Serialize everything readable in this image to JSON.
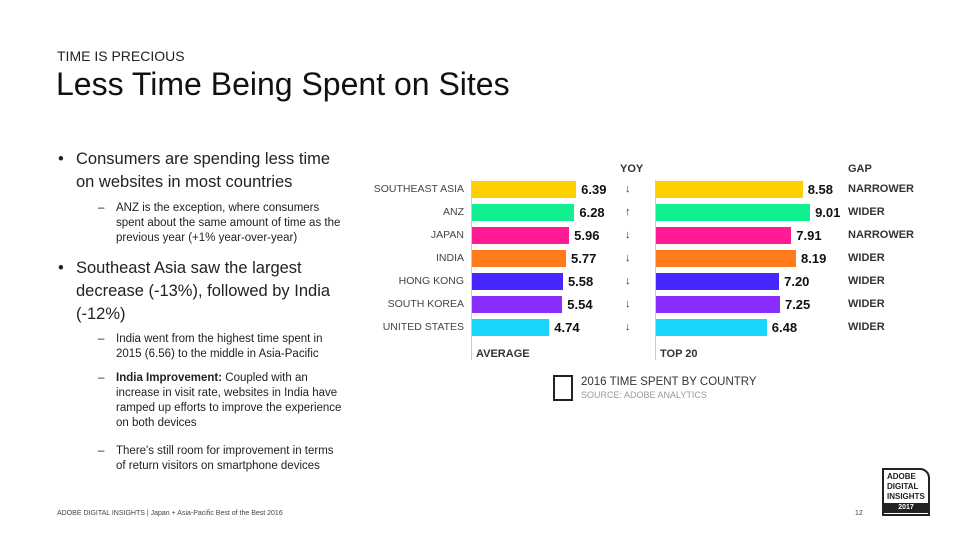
{
  "header": {
    "eyebrow": "TIME IS PRECIOUS",
    "title": "Less Time Being Spent on Sites"
  },
  "bullets": [
    {
      "text": "Consumers are spending less time on websites in most countries",
      "sub": [
        {
          "bold": "",
          "text": "ANZ is the exception, where consumers spent about the same amount of time as the previous year (+1% year-over-year)"
        }
      ]
    },
    {
      "text": "Southeast Asia saw the largest decrease (-13%), followed by India (-12%)",
      "sub": [
        {
          "bold": "",
          "text": "India went from the highest time spent in 2015 (6.56) to the middle in Asia-Pacific"
        },
        {
          "bold": "India Improvement:",
          "text": " Coupled with an increase in visit rate, websites in India have ramped up efforts to improve the experience on both devices"
        },
        {
          "bold": "",
          "text": "There's still room for improvement in terms of return visitors on smartphone devices"
        }
      ]
    }
  ],
  "chart_data": {
    "type": "bar",
    "title": "2016 TIME SPENT BY COUNTRY",
    "subtitle": "SOURCE: ADOBE ANALYTICS",
    "categories": [
      "SOUTHEAST ASIA",
      "ANZ",
      "JAPAN",
      "INDIA",
      "HONG KONG",
      "SOUTH KOREA",
      "UNITED STATES"
    ],
    "colors": [
      "#ffd000",
      "#10f090",
      "#ff1a96",
      "#ff7a1a",
      "#4628ff",
      "#8a2eff",
      "#1ad6ff"
    ],
    "series": [
      {
        "name": "AVERAGE",
        "values": [
          6.39,
          6.28,
          5.96,
          5.77,
          5.58,
          5.54,
          4.74
        ],
        "labels": [
          "6.39",
          "6.28",
          "5.96",
          "5.77",
          "5.58",
          "5.54",
          "4.74"
        ]
      },
      {
        "name": "TOP 20",
        "values": [
          8.58,
          9.01,
          7.91,
          8.19,
          7.2,
          7.25,
          6.48
        ],
        "labels": [
          "8.58",
          "9.01",
          "7.91",
          "8.19",
          "7.20",
          "7.25",
          "6.48"
        ]
      }
    ],
    "yoy_header": "YOY",
    "yoy": [
      "down",
      "up",
      "down",
      "down",
      "down",
      "down",
      "down"
    ],
    "gap_header": "GAP",
    "gap": [
      "NARROWER",
      "WIDER",
      "NARROWER",
      "WIDER",
      "WIDER",
      "WIDER",
      "WIDER"
    ],
    "grid": false
  },
  "logo": {
    "line1": "ADOBE",
    "line2": "DIGITAL",
    "line3": "INSIGHTS",
    "year": "2017"
  },
  "footer": {
    "text": "ADOBE DIGITAL INSIGHTS | Japan + Asia-Pacific Best of the Best 2016",
    "page": "12"
  }
}
